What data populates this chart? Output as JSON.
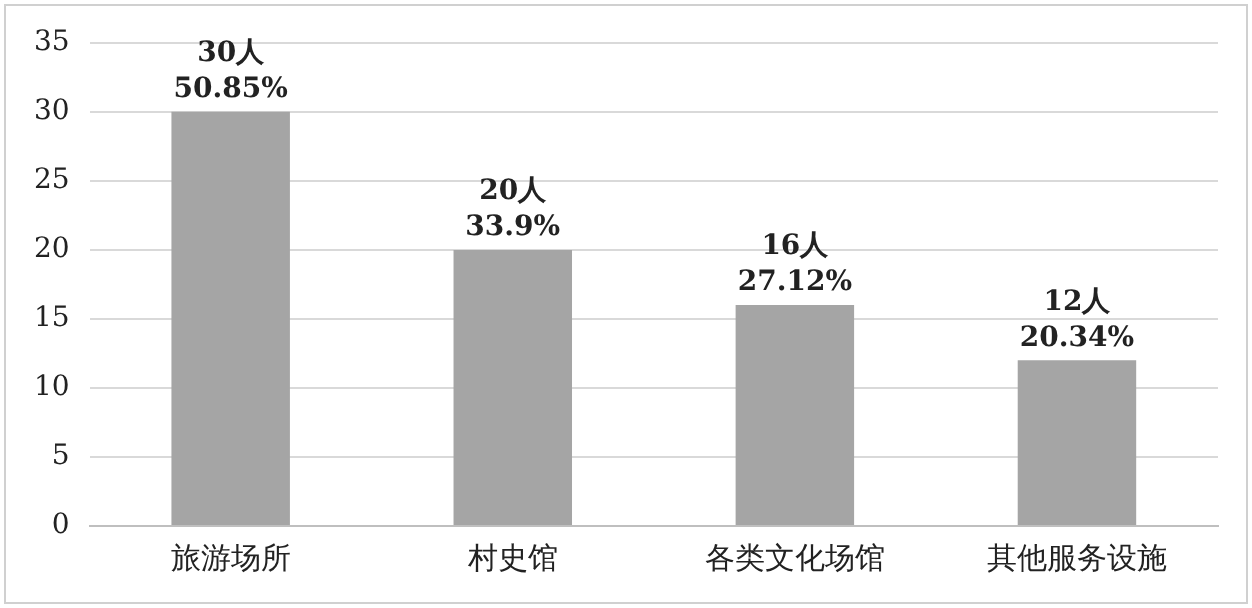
{
  "chart_data": {
    "type": "bar",
    "categories": [
      "旅游场所",
      "村史馆",
      "各类文化场馆",
      "其他服务设施"
    ],
    "values": [
      30,
      20,
      16,
      12
    ],
    "value_labels": [
      "30人\n50.85%",
      "20人\n33.9%",
      "16人\n27.12%",
      "12人\n20.34%"
    ],
    "color": "#a5a5a5",
    "ylim": [
      0,
      35
    ],
    "yticks": [
      0,
      5,
      10,
      15,
      20,
      25,
      30,
      35
    ],
    "grid": "y",
    "legend": false
  }
}
